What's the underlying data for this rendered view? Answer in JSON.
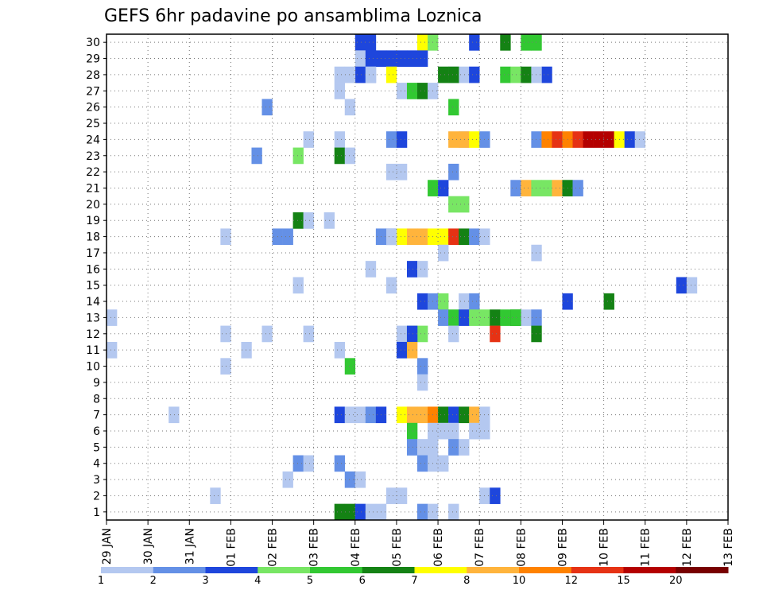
{
  "chart_data": {
    "type": "heatmap",
    "title": "GEFS 6hr padavine po ansamblima Loznica",
    "x_tick_labels": [
      "29 JAN",
      "30 JAN",
      "31 JAN",
      "01 FEB",
      "02 FEB",
      "03 FEB",
      "04 FEB",
      "05 FEB",
      "06 FEB",
      "07 FEB",
      "08 FEB",
      "09 FEB",
      "10 FEB",
      "11 FEB",
      "12 FEB",
      "13 FEB"
    ],
    "y_tick_labels": [
      "1",
      "2",
      "3",
      "4",
      "5",
      "6",
      "7",
      "8",
      "9",
      "10",
      "11",
      "12",
      "13",
      "14",
      "15",
      "16",
      "17",
      "18",
      "19",
      "20",
      "21",
      "22",
      "23",
      "24",
      "25",
      "26",
      "27",
      "28",
      "29",
      "30"
    ],
    "xlim": [
      0,
      15
    ],
    "ylim": [
      0,
      30
    ],
    "steps_per_day": 4,
    "grid": true,
    "legend": {
      "placement": "bottom",
      "labels": [
        "1",
        "2",
        "3",
        "4",
        "5",
        "6",
        "7",
        "8",
        "10",
        "12",
        "15",
        "20"
      ],
      "colors": [
        "#b4c8f0",
        "#6490e6",
        "#1e46dc",
        "#78e664",
        "#32c832",
        "#148214",
        "#ffff00",
        "#ffb43c",
        "#ff8200",
        "#e63214",
        "#b40000",
        "#780000"
      ]
    },
    "cells": [
      {
        "m": 30,
        "c": [
          [
            8,
            4,
            2
          ],
          [
            9,
            4,
            2
          ],
          [
            10,
            5,
            6
          ],
          [
            11,
            5,
            3
          ],
          [
            12,
            7,
            4
          ],
          [
            13,
            7,
            4
          ],
          [
            14,
            6,
            5
          ],
          [
            15,
            5,
            2
          ]
        ]
      },
      {
        "m": 29,
        "c": [
          [
            8,
            4,
            0
          ],
          [
            9,
            4,
            2
          ],
          [
            10,
            4,
            2
          ],
          [
            11,
            4,
            2
          ],
          [
            12,
            4,
            2
          ],
          [
            13,
            4,
            2
          ],
          [
            14,
            4,
            2
          ]
        ]
      },
      {
        "m": 28,
        "c": [
          [
            5,
            7,
            0
          ],
          [
            6,
            7,
            0
          ],
          [
            7,
            5,
            6
          ],
          [
            8,
            4,
            2
          ],
          [
            9,
            4,
            1
          ],
          [
            10,
            8,
            2
          ],
          [
            11,
            6,
            2
          ],
          [
            12,
            5,
            5
          ],
          [
            13,
            5,
            5
          ],
          [
            14,
            6,
            4
          ],
          [
            15,
            6,
            3
          ],
          [
            16,
            6,
            5
          ],
          [
            17,
            6,
            0
          ]
        ],
        "extra": [
          [
            6,
            4,
            0
          ],
          [
            9,
            4,
            0
          ],
          [
            11,
            3,
            0
          ]
        ]
      },
      {
        "m": 27,
        "c": [
          [
            8,
            5,
            0
          ],
          [
            9,
            5,
            4
          ],
          [
            10,
            5,
            5
          ],
          [
            11,
            5,
            0
          ]
        ],
        "extra": [
          [
            6,
            4,
            0
          ]
        ]
      },
      {
        "m": 26,
        "c": [
          [
            13,
            5,
            4
          ]
        ],
        "extra": [
          [
            11,
            1,
            1
          ],
          [
            11,
            3,
            0
          ]
        ]
      },
      {
        "m": 24,
        "c": [
          [
            2,
            8,
            0
          ],
          [
            3,
            6,
            1
          ],
          [
            4,
            6,
            2
          ],
          [
            5,
            7,
            7
          ],
          [
            6,
            7,
            7
          ],
          [
            7,
            7,
            6
          ],
          [
            8,
            7,
            1
          ],
          [
            9,
            8,
            1
          ],
          [
            10,
            8,
            8
          ],
          [
            11,
            8,
            9
          ],
          [
            12,
            8,
            8
          ],
          [
            13,
            8,
            9
          ],
          [
            14,
            8,
            10
          ],
          [
            15,
            8,
            10
          ],
          [
            16,
            8,
            10
          ],
          [
            17,
            8,
            6
          ],
          [
            18,
            8,
            2
          ],
          [
            19,
            8,
            0
          ]
        ],
        "extra": [
          [
            6,
            4,
            0
          ],
          [
            3,
            4,
            0
          ]
        ]
      },
      {
        "m": 23,
        "c": [
          [
            2,
            5,
            5
          ],
          [
            3,
            5,
            0
          ]
        ],
        "extra": [
          [
            14,
            0,
            1
          ],
          [
            14,
            1,
            3
          ]
        ]
      },
      {
        "m": 22,
        "c": [
          [
            3,
            6,
            0
          ],
          [
            4,
            6,
            0
          ],
          [
            13,
            5,
            1
          ]
        ]
      },
      {
        "m": 21,
        "c": [
          [
            3,
            7,
            4
          ],
          [
            4,
            7,
            2
          ],
          [
            11,
            7,
            1
          ],
          [
            12,
            7,
            7
          ],
          [
            13,
            7,
            3
          ],
          [
            14,
            7,
            3
          ],
          [
            15,
            7,
            7
          ],
          [
            16,
            7,
            5
          ],
          [
            17,
            7,
            1
          ]
        ]
      },
      {
        "m": 20,
        "c": [
          [
            13,
            5,
            3
          ],
          [
            14,
            5,
            3
          ]
        ]
      },
      {
        "m": 19,
        "c": [
          [
            2,
            4,
            5
          ],
          [
            3,
            4,
            0
          ]
        ],
        "extra": [
          [
            5,
            4,
            0
          ]
        ]
      },
      {
        "m": 18,
        "c": [
          [
            0,
            4,
            1
          ],
          [
            1,
            4,
            1
          ],
          [
            2,
            6,
            1
          ],
          [
            3,
            6,
            2
          ],
          [
            4,
            6,
            6
          ],
          [
            5,
            6,
            7
          ],
          [
            6,
            6,
            7
          ],
          [
            7,
            6,
            6
          ],
          [
            8,
            6,
            6
          ],
          [
            9,
            6,
            9
          ],
          [
            10,
            6,
            5
          ],
          [
            11,
            6,
            1
          ],
          [
            12,
            6,
            0
          ]
        ],
        "extra": [
          [
            7,
            1,
            0
          ],
          [
            11,
            4,
            0
          ]
        ]
      },
      {
        "m": 17,
        "c": [
          [
            13,
            7,
            0
          ]
        ],
        "extra": [
          [
            12,
            5,
            0
          ]
        ]
      },
      {
        "m": 16,
        "c": [
          [
            9,
            5,
            2
          ],
          [
            10,
            5,
            0
          ]
        ],
        "extra": [
          [
            13,
            3,
            0
          ]
        ]
      },
      {
        "m": 15,
        "c": [
          [
            15,
            10,
            2
          ],
          [
            16,
            10,
            0
          ]
        ],
        "extra": [
          [
            14,
            1,
            0
          ],
          [
            3,
            6,
            0
          ]
        ]
      },
      {
        "m": 14,
        "c": [
          [
            10,
            5,
            2
          ],
          [
            11,
            5,
            1
          ],
          [
            12,
            5,
            3
          ],
          [
            14,
            5,
            0
          ],
          [
            15,
            5,
            1
          ]
        ],
        "extra": [
          [
            12,
            8,
            2
          ],
          [
            12,
            9,
            5
          ]
        ]
      },
      {
        "m": 13,
        "c": [
          [
            0,
            0,
            0
          ],
          [
            12,
            5,
            1
          ],
          [
            13,
            5,
            4
          ],
          [
            14,
            5,
            2
          ],
          [
            15,
            5,
            3
          ],
          [
            16,
            5,
            3
          ],
          [
            17,
            5,
            5
          ],
          [
            18,
            5,
            4
          ],
          [
            19,
            5,
            5
          ],
          [
            20,
            5,
            0
          ]
        ],
        "extra": [
          [
            7,
            8,
            4
          ],
          [
            9,
            8,
            1
          ]
        ]
      },
      {
        "m": 12,
        "c": [
          [
            8,
            5,
            0
          ],
          [
            9,
            5,
            3
          ],
          [
            10,
            5,
            3
          ]
        ],
        "extra": [
          [
            11,
            0,
            0
          ],
          [
            11,
            1,
            0
          ],
          [
            11,
            2,
            0
          ],
          [
            13,
            4,
            2
          ],
          [
            13,
            5,
            0
          ],
          [
            13,
            6,
            9
          ],
          [
            13,
            7,
            5
          ]
        ]
      },
      {
        "m": 11,
        "c": [
          [
            0,
            0,
            0
          ],
          [
            8,
            5,
            2
          ],
          [
            9,
            5,
            7
          ]
        ],
        "extra": [
          [
            9,
            1,
            0
          ],
          [
            6,
            4,
            0
          ]
        ]
      },
      {
        "m": 10,
        "c": [
          [
            3,
            5,
            4
          ],
          [
            10,
            5,
            1
          ]
        ],
        "extra": [
          [
            3,
            2,
            0
          ]
        ]
      },
      {
        "m": 9,
        "c": [
          [
            10,
            5,
            0
          ]
        ]
      },
      {
        "m": 7,
        "c": [
          [
            2,
            5,
            2
          ],
          [
            3,
            5,
            0
          ],
          [
            4,
            5,
            0
          ],
          [
            5,
            5,
            1
          ],
          [
            6,
            5,
            2
          ],
          [
            8,
            5,
            6
          ],
          [
            9,
            5,
            7
          ],
          [
            10,
            5,
            7
          ],
          [
            11,
            5,
            8
          ],
          [
            12,
            5,
            5
          ],
          [
            13,
            5,
            2
          ],
          [
            14,
            5,
            5
          ],
          [
            15,
            5,
            7
          ],
          [
            16,
            5,
            0
          ]
        ],
        "extra": [
          [
            2,
            1,
            0
          ]
        ]
      },
      {
        "m": 6,
        "c": [
          [
            9,
            5,
            4
          ]
        ],
        "extra": [
          [
            3,
            7,
            0
          ],
          [
            0,
            8,
            0
          ],
          [
            1,
            8,
            0
          ],
          [
            3,
            8,
            0
          ],
          [
            4,
            8,
            0
          ]
        ]
      },
      {
        "m": 5,
        "c": [
          [
            9,
            5,
            1
          ],
          [
            10,
            5,
            0
          ],
          [
            11,
            5,
            0
          ],
          [
            13,
            5,
            1
          ],
          [
            14,
            5,
            0
          ]
        ]
      },
      {
        "m": 4,
        "c": [
          [
            2,
            5,
            1
          ],
          [
            10,
            5,
            1
          ],
          [
            11,
            5,
            0
          ],
          [
            12,
            5,
            0
          ]
        ],
        "extra": [
          [
            14,
            1,
            1
          ],
          [
            15,
            1,
            0
          ]
        ]
      },
      {
        "m": 3,
        "c": [
          [
            3,
            5,
            1
          ],
          [
            4,
            5,
            0
          ]
        ],
        "extra": [
          [
            1,
            4,
            0
          ]
        ]
      },
      {
        "m": 2,
        "c": [
          [
            3,
            6,
            0
          ],
          [
            4,
            6,
            0
          ],
          [
            12,
            6,
            0
          ],
          [
            13,
            6,
            2
          ]
        ],
        "extra": [
          [
            2,
            2,
            0
          ]
        ]
      },
      {
        "m": 1,
        "c": [
          [
            2,
            5,
            5
          ],
          [
            3,
            5,
            5
          ],
          [
            4,
            5,
            2
          ],
          [
            5,
            5,
            0
          ],
          [
            6,
            5,
            0
          ],
          [
            10,
            5,
            1
          ],
          [
            11,
            5,
            0
          ],
          [
            13,
            5,
            0
          ]
        ]
      }
    ],
    "edge_cells": [
      [
        12,
        0,
        0
      ],
      [
        6,
        10,
        0
      ],
      [
        16,
        0,
        0
      ],
      [
        14,
        15,
        0
      ],
      [
        6,
        9,
        1
      ],
      [
        7,
        9,
        1
      ],
      [
        8,
        9,
        0
      ],
      [
        3,
        6,
        2
      ],
      [
        2,
        6,
        2
      ]
    ]
  }
}
